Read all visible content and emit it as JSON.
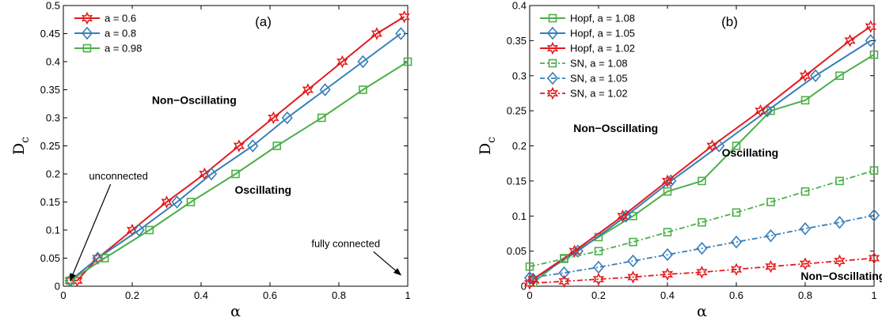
{
  "chart_data": [
    {
      "type": "line",
      "panel_label": "(a)",
      "xlabel": "α",
      "ylabel_main": "D",
      "ylabel_sub": "c",
      "xlim": [
        0,
        1
      ],
      "ylim": [
        0,
        0.5
      ],
      "xticks": [
        "0",
        "0.2",
        "0.4",
        "0.6",
        "0.8",
        "1"
      ],
      "yticks": [
        "0",
        "0.05",
        "0.1",
        "0.15",
        "0.2",
        "0.25",
        "0.3",
        "0.35",
        "0.4",
        "0.45",
        "0.5"
      ],
      "legend_position": "top-left",
      "regions": [
        {
          "text": "Non−Oscillating",
          "x": 0.38,
          "y": 0.325
        },
        {
          "text": "Oscillating",
          "x": 0.58,
          "y": 0.165
        }
      ],
      "annotations": [
        {
          "text": "unconnected",
          "text_x": 0.16,
          "text_y": 0.19,
          "arrow_to": [
            0.02,
            0.01
          ]
        },
        {
          "text": "fully connected",
          "text_x": 0.82,
          "text_y": 0.07,
          "arrow_to": [
            0.98,
            0.02
          ]
        }
      ],
      "series": [
        {
          "name": "a = 0.6",
          "color": "#e41a1c",
          "marker": "hexagram",
          "style": "solid",
          "x": [
            0.02,
            0.04,
            0.1,
            0.2,
            0.3,
            0.41,
            0.51,
            0.61,
            0.71,
            0.81,
            0.91,
            0.99
          ],
          "y": [
            0.01,
            0.01,
            0.05,
            0.1,
            0.15,
            0.2,
            0.25,
            0.3,
            0.35,
            0.4,
            0.45,
            0.48
          ]
        },
        {
          "name": "a = 0.8",
          "color": "#377eb8",
          "marker": "diamond",
          "style": "solid",
          "x": [
            0.02,
            0.1,
            0.22,
            0.33,
            0.43,
            0.55,
            0.65,
            0.76,
            0.87,
            0.98
          ],
          "y": [
            0.01,
            0.05,
            0.1,
            0.15,
            0.2,
            0.25,
            0.3,
            0.35,
            0.4,
            0.45
          ]
        },
        {
          "name": "a = 0.98",
          "color": "#4daf4a",
          "marker": "square",
          "style": "solid",
          "x": [
            0.02,
            0.12,
            0.25,
            0.37,
            0.5,
            0.62,
            0.75,
            0.87,
            1.0
          ],
          "y": [
            0.01,
            0.05,
            0.1,
            0.15,
            0.2,
            0.25,
            0.3,
            0.35,
            0.4
          ]
        }
      ]
    },
    {
      "type": "line",
      "panel_label": "(b)",
      "xlabel": "α",
      "ylabel_main": "D",
      "ylabel_sub": "c",
      "xlim": [
        0,
        1
      ],
      "ylim": [
        0,
        0.4
      ],
      "xticks": [
        "0",
        "0.2",
        "0.4",
        "0.6",
        "0.8",
        "1"
      ],
      "yticks": [
        "0",
        "0.05",
        "0.1",
        "0.15",
        "0.2",
        "0.25",
        "0.3",
        "0.35",
        "0.4"
      ],
      "legend_position": "top-left",
      "regions": [
        {
          "text": "Non−Oscillating",
          "x": 0.25,
          "y": 0.22
        },
        {
          "text": "Oscillating",
          "x": 0.64,
          "y": 0.185
        },
        {
          "text": "Non−Oscillating",
          "x": 0.91,
          "y": 0.009
        }
      ],
      "series": [
        {
          "name": "Hopf, a = 1.08",
          "color": "#4daf4a",
          "marker": "square",
          "style": "solid",
          "x": [
            0.01,
            0.1,
            0.2,
            0.3,
            0.4,
            0.5,
            0.6,
            0.7,
            0.8,
            0.9,
            1.0
          ],
          "y": [
            0.005,
            0.04,
            0.07,
            0.1,
            0.135,
            0.15,
            0.2,
            0.25,
            0.265,
            0.3,
            0.33
          ]
        },
        {
          "name": "Hopf, a = 1.05",
          "color": "#377eb8",
          "marker": "diamond",
          "style": "solid",
          "x": [
            0.01,
            0.14,
            0.28,
            0.41,
            0.55,
            0.69,
            0.83,
            0.99
          ],
          "y": [
            0.01,
            0.05,
            0.1,
            0.15,
            0.2,
            0.25,
            0.3,
            0.35
          ]
        },
        {
          "name": "Hopf, a = 1.02",
          "color": "#e41a1c",
          "marker": "hexagram",
          "style": "solid",
          "x": [
            0.01,
            0.13,
            0.27,
            0.4,
            0.53,
            0.67,
            0.8,
            0.93,
            0.99
          ],
          "y": [
            0.01,
            0.05,
            0.1,
            0.15,
            0.2,
            0.25,
            0.3,
            0.35,
            0.37
          ]
        },
        {
          "name": "SN, a = 1.08",
          "color": "#4daf4a",
          "marker": "square",
          "style": "dashdot",
          "x": [
            0.0,
            0.1,
            0.2,
            0.3,
            0.4,
            0.5,
            0.6,
            0.7,
            0.8,
            0.9,
            1.0
          ],
          "y": [
            0.028,
            0.039,
            0.05,
            0.063,
            0.077,
            0.091,
            0.105,
            0.12,
            0.135,
            0.15,
            0.165
          ]
        },
        {
          "name": "SN, a = 1.05",
          "color": "#377eb8",
          "marker": "diamond",
          "style": "dashdot",
          "x": [
            0.0,
            0.1,
            0.2,
            0.3,
            0.4,
            0.5,
            0.6,
            0.7,
            0.8,
            0.9,
            1.0
          ],
          "y": [
            0.012,
            0.019,
            0.027,
            0.036,
            0.045,
            0.054,
            0.063,
            0.072,
            0.082,
            0.091,
            0.101
          ]
        },
        {
          "name": "SN, a = 1.02",
          "color": "#e41a1c",
          "marker": "hexagram",
          "style": "dashdot",
          "x": [
            0.0,
            0.1,
            0.2,
            0.3,
            0.4,
            0.5,
            0.6,
            0.7,
            0.8,
            0.9,
            1.0
          ],
          "y": [
            0.004,
            0.007,
            0.01,
            0.013,
            0.017,
            0.02,
            0.024,
            0.028,
            0.032,
            0.036,
            0.04
          ]
        }
      ]
    }
  ]
}
